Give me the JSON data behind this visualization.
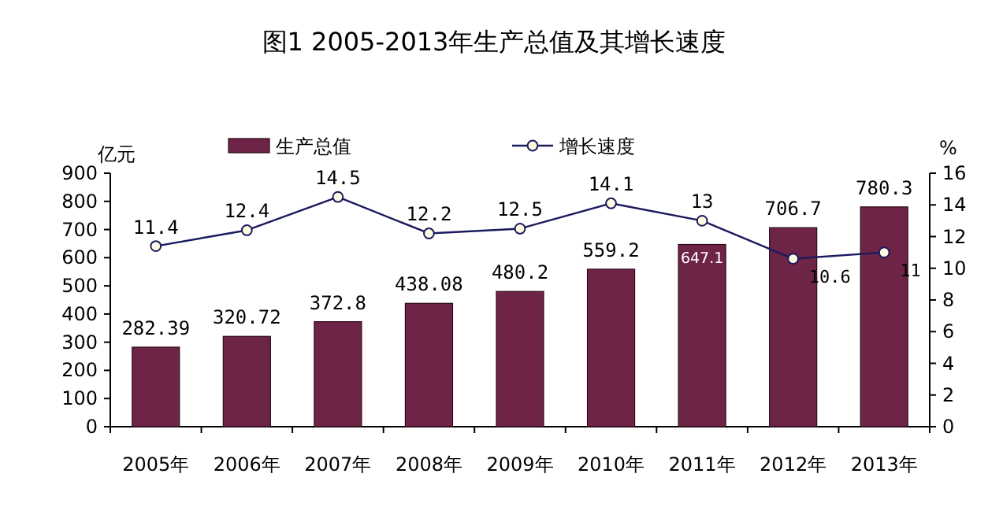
{
  "chart_data": {
    "type": "bar",
    "title": "图1 2005-2013年生产总值及其增长速度",
    "ylabel": "亿元",
    "y2label": "%",
    "categories": [
      "2005年",
      "2006年",
      "2007年",
      "2008年",
      "2009年",
      "2010年",
      "2011年",
      "2012年",
      "2013年"
    ],
    "series": [
      {
        "name": "生产总值",
        "color": "#6e2446",
        "values": [
          282.39,
          320.72,
          372.8,
          438.08,
          480.2,
          559.2,
          647.1,
          706.7,
          780.3
        ]
      },
      {
        "name": "增长速度",
        "type": "line",
        "axis": "y2",
        "color": "#1a1a5e",
        "marker": "circle",
        "values": [
          11.4,
          12.4,
          14.5,
          12.2,
          12.5,
          14.1,
          13,
          10.6,
          11
        ]
      }
    ],
    "ylim": [
      0,
      900
    ],
    "yticks": [
      0,
      100,
      200,
      300,
      400,
      500,
      600,
      700,
      800,
      900
    ],
    "y2lim": [
      0,
      16
    ],
    "y2ticks": [
      0,
      2,
      4,
      6,
      8,
      10,
      12,
      14,
      16
    ],
    "data_labels": true,
    "legend": "top",
    "grid": false
  }
}
